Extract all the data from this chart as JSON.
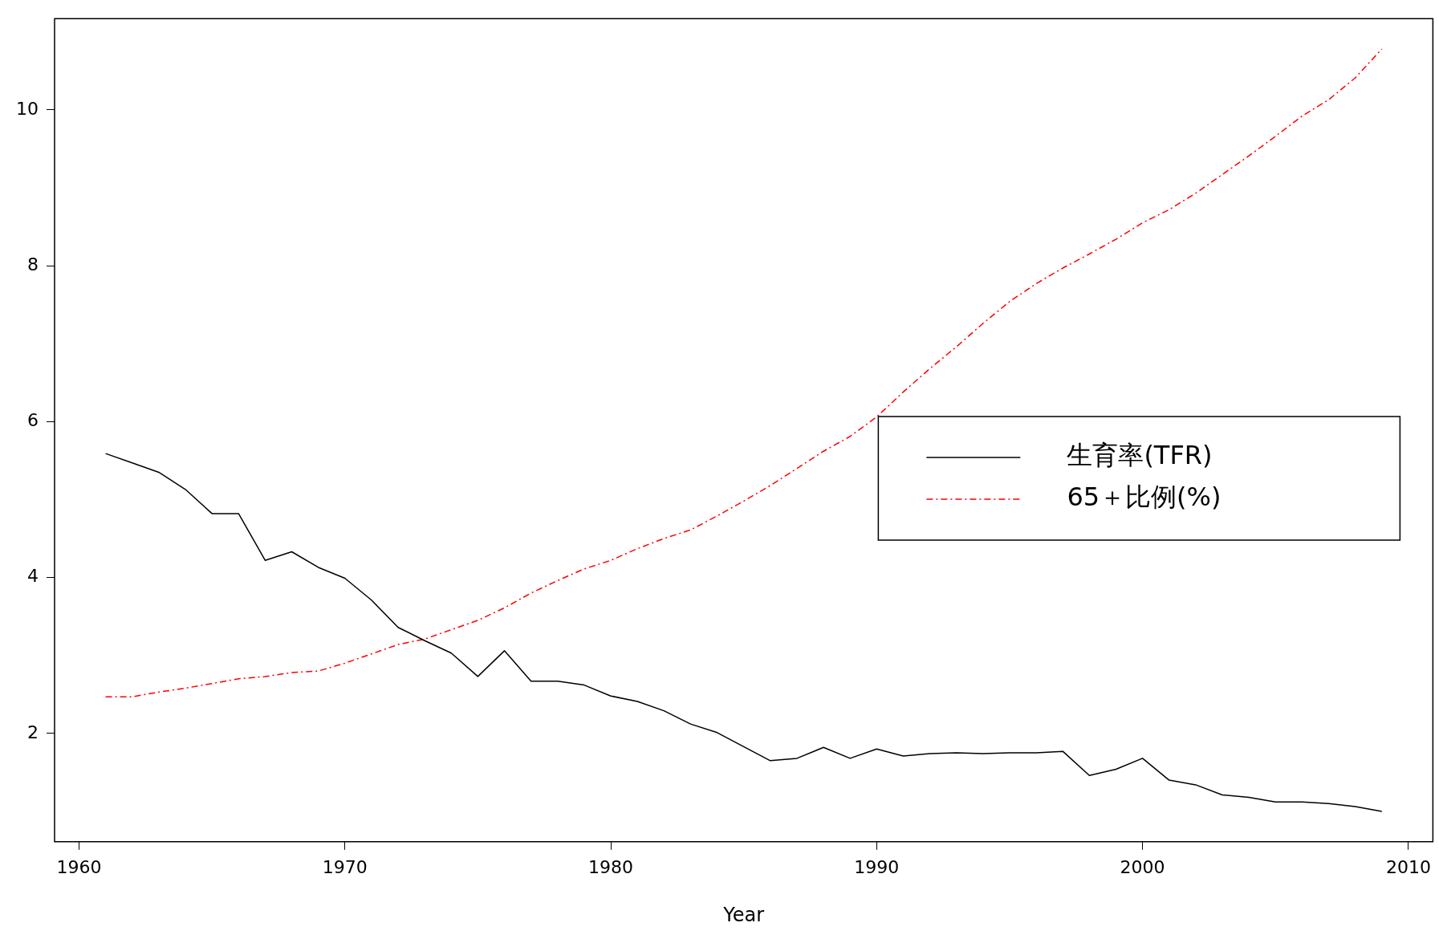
{
  "chart_data": {
    "type": "line",
    "xlabel": "Year",
    "x": [
      1961,
      1962,
      1963,
      1964,
      1965,
      1966,
      1967,
      1968,
      1969,
      1970,
      1971,
      1972,
      1973,
      1974,
      1975,
      1976,
      1977,
      1978,
      1979,
      1980,
      1981,
      1982,
      1983,
      1984,
      1985,
      1986,
      1987,
      1988,
      1989,
      1990,
      1991,
      1992,
      1993,
      1994,
      1995,
      1996,
      1997,
      1998,
      1999,
      2000,
      2001,
      2002,
      2003,
      2004,
      2005,
      2006,
      2007,
      2008,
      2009
    ],
    "series": [
      {
        "name": "生育率(TFR)",
        "color": "#000000",
        "line_style": "solid",
        "values": [
          5.59,
          5.47,
          5.35,
          5.13,
          4.82,
          4.82,
          4.22,
          4.33,
          4.13,
          3.99,
          3.71,
          3.36,
          3.19,
          3.03,
          2.73,
          3.06,
          2.67,
          2.67,
          2.62,
          2.48,
          2.41,
          2.29,
          2.12,
          2.01,
          1.83,
          1.65,
          1.68,
          1.82,
          1.68,
          1.8,
          1.71,
          1.74,
          1.75,
          1.74,
          1.75,
          1.75,
          1.77,
          1.46,
          1.54,
          1.68,
          1.4,
          1.34,
          1.21,
          1.18,
          1.12,
          1.12,
          1.1,
          1.06,
          1.0
        ]
      },
      {
        "name": "65＋比例(%)",
        "color": "#ff0000",
        "line_style": "dashed",
        "values": [
          2.47,
          2.47,
          2.53,
          2.58,
          2.64,
          2.7,
          2.73,
          2.78,
          2.8,
          2.9,
          3.02,
          3.14,
          3.21,
          3.33,
          3.45,
          3.61,
          3.8,
          3.96,
          4.11,
          4.22,
          4.37,
          4.5,
          4.61,
          4.79,
          4.98,
          5.18,
          5.4,
          5.62,
          5.81,
          6.06,
          6.38,
          6.68,
          6.96,
          7.26,
          7.54,
          7.77,
          7.97,
          8.15,
          8.34,
          8.55,
          8.72,
          8.93,
          9.17,
          9.41,
          9.66,
          9.92,
          10.13,
          10.41,
          10.78
        ]
      }
    ],
    "xlim": [
      1959.08,
      2010.92
    ],
    "xticks": [
      1960,
      1970,
      1980,
      1990,
      2000,
      2010
    ],
    "ylim": [
      0.61,
      11.17
    ],
    "yticks": [
      2,
      4,
      6,
      8,
      10
    ],
    "grid": false,
    "legend": "right",
    "marker": "none"
  }
}
